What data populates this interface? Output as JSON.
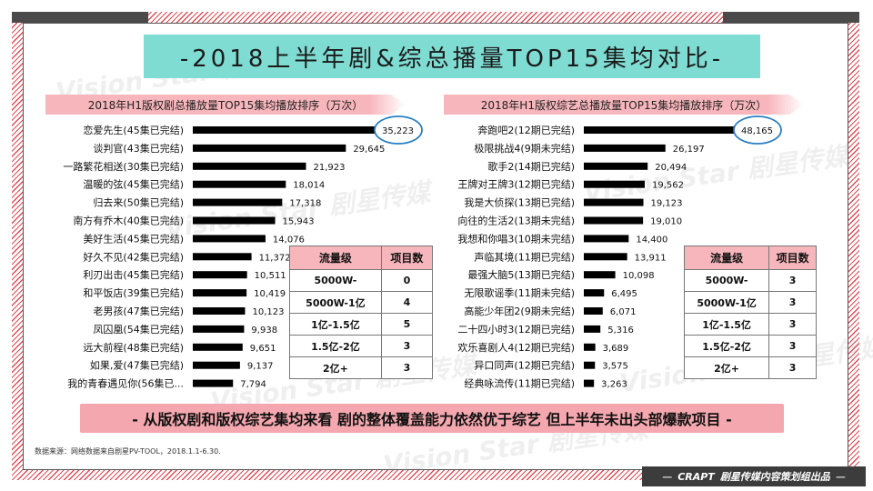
{
  "title": "-2018上半年剧&综总播量TOP15集均对比-",
  "left_panel": {
    "header": "2018年H1版权剧总播放量TOP15集均播放排序（万次）",
    "table": {
      "headers": [
        "流量级",
        "项目数"
      ],
      "rows": [
        [
          "5000W-",
          "0"
        ],
        [
          "5000W-1亿",
          "4"
        ],
        [
          "1亿-1.5亿",
          "5"
        ],
        [
          "1.5亿-2亿",
          "3"
        ],
        [
          "2亿+",
          "3"
        ]
      ]
    }
  },
  "right_panel": {
    "header": "2018年H1版权综艺总播放量TOP15集均播放排序（万次）",
    "table": {
      "headers": [
        "流量级",
        "项目数"
      ],
      "rows": [
        [
          "5000W-",
          "3"
        ],
        [
          "5000W-1亿",
          "3"
        ],
        [
          "1亿-1.5亿",
          "3"
        ],
        [
          "1.5亿-2亿",
          "3"
        ],
        [
          "2亿+",
          "3"
        ]
      ]
    }
  },
  "chart_data": [
    {
      "type": "bar",
      "orientation": "horizontal",
      "title": "2018年H1版权剧总播放量TOP15集均播放排序（万次）",
      "categories": [
        "恋爱先生(45集已完结)",
        "谈判官(43集已完结)",
        "一路繁花相送(30集已完结)",
        "温暖的弦(45集已完结)",
        "归去来(50集已完结)",
        "南方有乔木(40集已完结)",
        "美好生活(45集已完结)",
        "好久不见(42集已完结)",
        "利刃出击(45集已完结)",
        "和平饭店(39集已完结)",
        "老男孩(47集已完结)",
        "凤囚凰(54集已完结)",
        "远大前程(48集已完结)",
        "如果,爱(47集已完结)",
        "我的青春遇见你(56集已..."
      ],
      "values": [
        35223,
        29645,
        21923,
        18014,
        17318,
        15943,
        14076,
        11372,
        10511,
        10419,
        10123,
        9938,
        9651,
        9137,
        7794
      ],
      "value_labels": [
        "35,223",
        "29,645",
        "21,923",
        "18,014",
        "17,318",
        "15,943",
        "14,076",
        "11,372",
        "10,511",
        "10,419",
        "10,123",
        "9,938",
        "9,651",
        "9,137",
        "7,794"
      ],
      "highlight_index": 0,
      "bar_color": "#000000",
      "highlight_color": "#2a7fc4"
    },
    {
      "type": "bar",
      "orientation": "horizontal",
      "title": "2018年H1版权综艺总播放量TOP15集均播放排序（万次）",
      "categories": [
        "奔跑吧2(12期已完结)",
        "极限挑战4(9期未完结)",
        "歌手2(14期已完结)",
        "王牌对王牌3(12期已完结)",
        "我是大侦探(13期已完结)",
        "向往的生活2(13期未完结)",
        "我想和你唱3(10期未完结)",
        "声临其境(11期已完结)",
        "最强大脑5(13期已完结)",
        "无限歌谣季(11期未完结)",
        "高能少年团2(9期未完结)",
        "二十四小时3(12期已完结)",
        "欢乐喜剧人4(12期已完结)",
        "异口同声(12期已完结)",
        "经典咏流传(11期已完结)"
      ],
      "values": [
        48165,
        26197,
        20494,
        19562,
        19123,
        19010,
        14400,
        13911,
        10098,
        6495,
        6071,
        5316,
        3689,
        3575,
        3263
      ],
      "value_labels": [
        "48,165",
        "26,197",
        "20,494",
        "19,562",
        "19,123",
        "19,010",
        "14,400",
        "13,911",
        "10,098",
        "6,495",
        "6,071",
        "5,316",
        "3,689",
        "3,575",
        "3,263"
      ],
      "highlight_index": 0,
      "bar_color": "#000000",
      "highlight_color": "#2a7fc4"
    }
  ],
  "conclusion": "- 从版权剧和版权综艺集均来看 剧的整体覆盖能力依然优于综艺 但上半年未出头部爆款项目 -",
  "source": "数据来源：网络数据来自剧星PV-TOOL，2018.1.1-6.30.",
  "footer": {
    "logo": "CRAPT",
    "text": "剧星传媒内容策划组出品"
  },
  "watermark": [
    "Vision Star",
    "剧星传媒"
  ],
  "colors": {
    "title_bg": "#7fdcd3",
    "pink": "#f7b6bc",
    "stripe": "#e24b55"
  }
}
